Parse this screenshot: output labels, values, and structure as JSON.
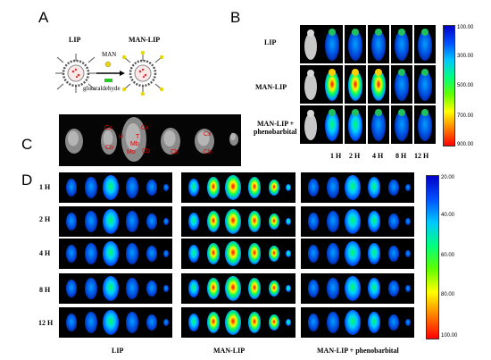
{
  "panels": {
    "a": "A",
    "b": "B",
    "c": "C",
    "d": "D"
  },
  "panel_a": {
    "lip_label": "LIP",
    "man_label": "MAN",
    "glutaraldehyde_label": "glutaraldehyde",
    "man_lip_label": "MAN-LIP"
  },
  "panel_b": {
    "row_labels": [
      "LIP",
      "MAN-LIP",
      "MAN-LIP +",
      "phenobarbital"
    ],
    "col_labels": [
      "1 H",
      "2 H",
      "4 H",
      "8 H",
      "12 H"
    ],
    "scale_ticks": [
      "100.00",
      "300.00",
      "500.00",
      "700.00",
      "900.00"
    ]
  },
  "panel_c": {
    "regions": [
      "Cx",
      "H",
      "T",
      "Cx",
      "Cb",
      "Mb",
      "Mo",
      "Cb",
      "Cx",
      "Cb",
      "Cb"
    ]
  },
  "panel_d": {
    "row_labels": [
      "1 H",
      "2 H",
      "4 H",
      "8 H",
      "12 H"
    ],
    "group_labels": [
      "LIP",
      "MAN-LIP",
      "MAN-LIP + phenobarbital"
    ],
    "scale_ticks": [
      "20.00",
      "40.00",
      "60.00",
      "80.00",
      "100.00"
    ]
  },
  "colors": {
    "scale_top": "#0000c8",
    "scale_mid": "#00ff00",
    "scale_bottom": "#ff0000",
    "image_bg": "#000000"
  }
}
